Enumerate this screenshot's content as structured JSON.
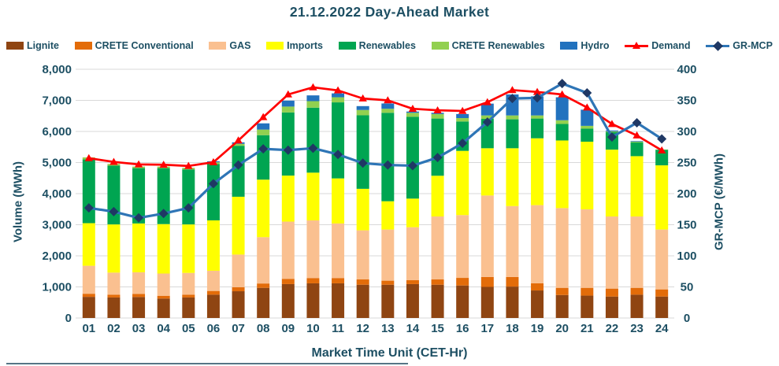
{
  "title": "21.12.2022  Day-Ahead Market",
  "colors": {
    "text": "#1D4F63",
    "grid": "#D9D9D9",
    "demand": "#FF0000",
    "gr_mcp_line": "#2E75B6",
    "gr_mcp_marker": "#1F3864"
  },
  "legend": [
    {
      "label": "Lignite",
      "type": "bar",
      "color": "#8F4512"
    },
    {
      "label": "CRETE Conventional",
      "type": "bar",
      "color": "#E36C09"
    },
    {
      "label": "GAS",
      "type": "bar",
      "color": "#FAC090"
    },
    {
      "label": "Imports",
      "type": "bar",
      "color": "#FFFF00"
    },
    {
      "label": "Renewables",
      "type": "bar",
      "color": "#00A551"
    },
    {
      "label": "CRETE Renewables",
      "type": "bar",
      "color": "#92D050"
    },
    {
      "label": "Hydro",
      "type": "bar",
      "color": "#2272BE"
    },
    {
      "label": "Demand",
      "type": "line-triangle",
      "color": "#FF0000"
    },
    {
      "label": "GR-MCP",
      "type": "line-diamond",
      "color": "#2E75B6",
      "marker_color": "#1F3864"
    }
  ],
  "axes": {
    "left_title": "Volume (MWh)",
    "right_title": "GR-MCP (€/MWh)",
    "x_title": "Market Time Unit (CET-Hr)",
    "left_ticks": [
      {
        "v": 0,
        "label": "0"
      },
      {
        "v": 1000,
        "label": "1,000"
      },
      {
        "v": 2000,
        "label": "2,000"
      },
      {
        "v": 3000,
        "label": "3,000"
      },
      {
        "v": 4000,
        "label": "4,000"
      },
      {
        "v": 5000,
        "label": "5,000"
      },
      {
        "v": 6000,
        "label": "6,000"
      },
      {
        "v": 7000,
        "label": "7,000"
      },
      {
        "v": 8000,
        "label": "8,000"
      }
    ],
    "right_ticks": [
      {
        "v": 0,
        "label": "0"
      },
      {
        "v": 50,
        "label": "50"
      },
      {
        "v": 100,
        "label": "100"
      },
      {
        "v": 150,
        "label": "150"
      },
      {
        "v": 200,
        "label": "200"
      },
      {
        "v": 250,
        "label": "250"
      },
      {
        "v": 300,
        "label": "300"
      },
      {
        "v": 350,
        "label": "350"
      },
      {
        "v": 400,
        "label": "400"
      }
    ]
  },
  "chart_data": {
    "type": "combo-stacked-bar-line",
    "title": "21.12.2022  Day-Ahead Market",
    "xlabel": "Market Time Unit (CET-Hr)",
    "ylabel_left": "Volume (MWh)",
    "ylabel_right": "GR-MCP (€/MWh)",
    "ylim_left": [
      0,
      8000
    ],
    "ylim_right": [
      0,
      400
    ],
    "grid": true,
    "legend_position": "top",
    "categories": [
      "01",
      "02",
      "03",
      "04",
      "05",
      "06",
      "07",
      "08",
      "09",
      "10",
      "11",
      "12",
      "13",
      "14",
      "15",
      "16",
      "17",
      "18",
      "19",
      "20",
      "21",
      "22",
      "23",
      "24"
    ],
    "bar_series": [
      {
        "name": "Lignite",
        "color": "#8F4512",
        "values": [
          680,
          660,
          675,
          625,
          660,
          750,
          860,
          970,
          1090,
          1115,
          1115,
          1070,
          1070,
          1090,
          1070,
          1045,
          1000,
          1010,
          885,
          740,
          720,
          690,
          750,
          690
        ]
      },
      {
        "name": "CRETE Conventional",
        "color": "#E36C09",
        "values": [
          100,
          90,
          100,
          90,
          90,
          120,
          130,
          140,
          170,
          170,
          170,
          170,
          130,
          125,
          170,
          245,
          320,
          310,
          230,
          230,
          250,
          255,
          220,
          230
        ]
      },
      {
        "name": "GAS",
        "color": "#FAC090",
        "values": [
          900,
          710,
          695,
          715,
          700,
          650,
          1050,
          1490,
          1840,
          1855,
          1755,
          1580,
          1645,
          1705,
          2025,
          2020,
          2620,
          2280,
          2515,
          2565,
          2525,
          2320,
          2295,
          1925
        ]
      },
      {
        "name": "Imports",
        "color": "#FFFF00",
        "values": [
          1370,
          1550,
          1570,
          1590,
          1560,
          1620,
          1860,
          1850,
          1480,
          1535,
          1450,
          1335,
          910,
          920,
          1310,
          2065,
          1520,
          1860,
          2150,
          2175,
          2175,
          2150,
          1940,
          2065
        ]
      },
      {
        "name": "Renewables",
        "color": "#00A551",
        "values": [
          2050,
          1890,
          1780,
          1800,
          1770,
          1810,
          1640,
          1430,
          2030,
          2090,
          2445,
          2365,
          2845,
          2630,
          1840,
          945,
          945,
          930,
          635,
          530,
          420,
          560,
          440,
          500
        ]
      },
      {
        "name": "CRETE Renewables",
        "color": "#92D050",
        "values": [
          65,
          55,
          50,
          50,
          50,
          60,
          60,
          180,
          190,
          210,
          165,
          170,
          130,
          130,
          145,
          110,
          110,
          125,
          100,
          120,
          90,
          25,
          25,
          10
        ]
      },
      {
        "name": "Hydro",
        "color": "#2272BE",
        "values": [
          0,
          0,
          0,
          0,
          0,
          30,
          50,
          200,
          190,
          185,
          125,
          125,
          170,
          40,
          40,
          130,
          380,
          675,
          615,
          740,
          520,
          30,
          20,
          0
        ]
      }
    ],
    "line_series": [
      {
        "name": "Demand",
        "axis": "left",
        "color": "#FF0000",
        "marker": "triangle",
        "marker_color": "#FF0000",
        "values": [
          5140,
          5020,
          4940,
          4930,
          4890,
          5010,
          5710,
          6460,
          7190,
          7420,
          7320,
          7060,
          7000,
          6730,
          6680,
          6660,
          6940,
          7330,
          7270,
          7190,
          6770,
          6240,
          5870,
          5390
        ]
      },
      {
        "name": "GR-MCP",
        "axis": "right",
        "color": "#2E75B6",
        "marker": "diamond",
        "marker_color": "#1F3864",
        "values": [
          177,
          171,
          161,
          168,
          177,
          216,
          246,
          272,
          270,
          273,
          263,
          249,
          246,
          245,
          258,
          281,
          315,
          353,
          354,
          377,
          362,
          291,
          314,
          288
        ]
      }
    ]
  }
}
